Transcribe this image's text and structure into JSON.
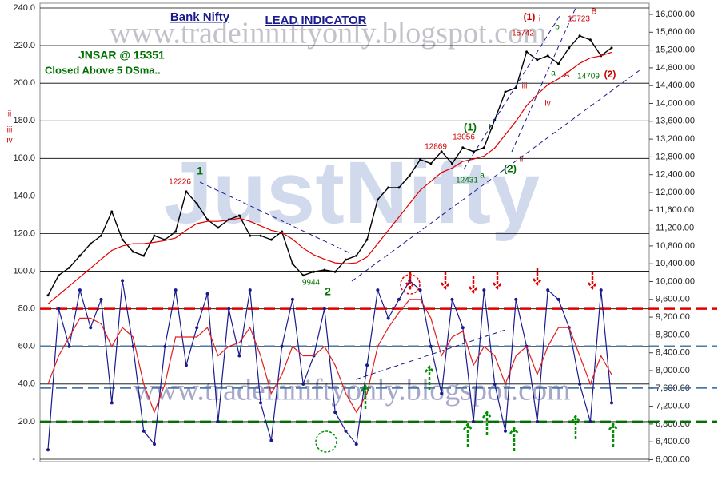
{
  "chart_data": {
    "type": "line",
    "title": "Bank Nifty",
    "subtitle": "LEAD INDICATOR",
    "annotations": [
      "JNSAR @ 15351",
      "Closed  Above 5 DSma..",
      "www.tradeinniftyonly.blogspot.com",
      "www.tradeinniftyonly.blogspot.com",
      "JustNifty",
      "1",
      "2",
      "12226",
      "9944",
      "12869",
      "13056",
      "12431",
      "(1)",
      "(2)",
      "b",
      "a",
      "(1)",
      "(2)",
      "15742",
      "15723",
      "14709",
      "A",
      "B",
      "a",
      "b",
      "i",
      "ii",
      "iii",
      "iv",
      "ii",
      "iii",
      "iv"
    ],
    "ylim": [
      0,
      240
    ],
    "yticks": [
      {
        "value": 0,
        "label": "-"
      },
      {
        "value": 20,
        "label": "20.0"
      },
      {
        "value": 40,
        "label": "40.0"
      },
      {
        "value": 60,
        "label": "60.0"
      },
      {
        "value": 80,
        "label": "80.0"
      },
      {
        "value": 100,
        "label": "100.0"
      },
      {
        "value": 120,
        "label": "120.0"
      },
      {
        "value": 140,
        "label": "140.0"
      },
      {
        "value": 160,
        "label": "160.0"
      },
      {
        "value": 180,
        "label": "180.0"
      },
      {
        "value": 200,
        "label": "200.0"
      },
      {
        "value": 220,
        "label": "220.0"
      },
      {
        "value": 240,
        "label": "240.0"
      }
    ],
    "y2lim": [
      6000,
      16000
    ],
    "y2ticks": [
      {
        "value": 6000,
        "label": "6,000.00"
      },
      {
        "value": 6400,
        "label": "6,400.00"
      },
      {
        "value": 6800,
        "label": "6,800.00"
      },
      {
        "value": 7200,
        "label": "7,200.00"
      },
      {
        "value": 7600,
        "label": "7,600.00"
      },
      {
        "value": 8000,
        "label": "8,000.00"
      },
      {
        "value": 8400,
        "label": "8,400.00"
      },
      {
        "value": 8800,
        "label": "8,800.00"
      },
      {
        "value": 9200,
        "label": "9,200.00"
      },
      {
        "value": 9600,
        "label": "9,600.00"
      },
      {
        "value": 10000,
        "label": "10,000.00"
      },
      {
        "value": 10400,
        "label": "10,400.00"
      },
      {
        "value": 10800,
        "label": "10,800.00"
      },
      {
        "value": 11200,
        "label": "11,200.00"
      },
      {
        "value": 11600,
        "label": "11,600.00"
      },
      {
        "value": 12000,
        "label": "12,000.00"
      },
      {
        "value": 12400,
        "label": "12,400.00"
      },
      {
        "value": 12800,
        "label": "12,800.00"
      },
      {
        "value": 13200,
        "label": "13,200.00"
      },
      {
        "value": 13600,
        "label": "13,600.00"
      },
      {
        "value": 14000,
        "label": "14,000.00"
      },
      {
        "value": 14400,
        "label": "14,400.00"
      },
      {
        "value": 14800,
        "label": "14,800.00"
      },
      {
        "value": 15200,
        "label": "15,200.00"
      },
      {
        "value": 15600,
        "label": "15,600.00"
      },
      {
        "value": 16000,
        "label": "16,000.00"
      }
    ],
    "grid": true,
    "ref_lines": [
      {
        "value": 80,
        "color": "#e00000"
      },
      {
        "value": 60,
        "color": "#4a7aa8"
      },
      {
        "value": 38,
        "color": "#4a7aa8"
      },
      {
        "value": 20,
        "color": "#007000"
      }
    ],
    "series": [
      {
        "axis": "y2",
        "color": "#000000",
        "values": [
          9690,
          10140,
          10310,
          10580,
          10850,
          11030,
          11570,
          10940,
          10670,
          10580,
          11030,
          10940,
          11120,
          12020,
          11750,
          11390,
          11210,
          11390,
          11480,
          11030,
          11030,
          10940,
          11120,
          10400,
          10140,
          10220,
          10260,
          10220,
          10490,
          10580,
          10940,
          11840,
          12110,
          12110,
          12380,
          12740,
          12650,
          12920,
          12650,
          13010,
          12920,
          13010,
          13630,
          14260,
          14350,
          15160,
          14980,
          15070,
          14890,
          15250,
          15520,
          15430,
          15070,
          15250
        ]
      },
      {
        "axis": "y2",
        "color": "#e00000",
        "values": [
          9500,
          9700,
          9900,
          10100,
          10300,
          10500,
          10700,
          10800,
          10850,
          10850,
          10880,
          10920,
          10980,
          11150,
          11300,
          11350,
          11350,
          11380,
          11420,
          11350,
          11250,
          11150,
          11100,
          10950,
          10750,
          10600,
          10500,
          10420,
          10400,
          10420,
          10550,
          10850,
          11150,
          11450,
          11750,
          12050,
          12250,
          12450,
          12550,
          12700,
          12750,
          12820,
          13000,
          13300,
          13600,
          13950,
          14200,
          14420,
          14550,
          14720,
          14900,
          15020,
          15070,
          15150
        ]
      },
      {
        "color": "#1a1a8c",
        "values": [
          5,
          80,
          60,
          90,
          70,
          85,
          30,
          95,
          60,
          15,
          8,
          60,
          90,
          50,
          70,
          88,
          20,
          80,
          55,
          90,
          30,
          10,
          60,
          85,
          40,
          55,
          80,
          25,
          15,
          8,
          50,
          90,
          75,
          85,
          95,
          90,
          60,
          35,
          85,
          70,
          20,
          90,
          40,
          15,
          85,
          60,
          20,
          90,
          85,
          70,
          40,
          20,
          90,
          30
        ]
      },
      {
        "color": "#e02020",
        "values": [
          40,
          55,
          65,
          75,
          75,
          72,
          60,
          70,
          65,
          40,
          25,
          40,
          65,
          65,
          65,
          70,
          55,
          60,
          62,
          70,
          55,
          35,
          45,
          60,
          55,
          55,
          60,
          50,
          35,
          25,
          35,
          60,
          70,
          78,
          85,
          85,
          75,
          55,
          65,
          68,
          50,
          60,
          55,
          40,
          55,
          60,
          45,
          60,
          70,
          70,
          55,
          40,
          55,
          45
        ]
      }
    ]
  }
}
